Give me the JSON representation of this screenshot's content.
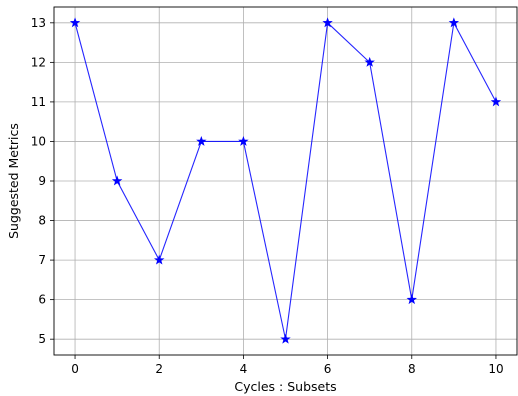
{
  "chart_data": {
    "type": "line",
    "title": "",
    "xlabel": "Cycles : Subsets",
    "ylabel": "Suggested Metrics",
    "x": [
      0,
      1,
      2,
      3,
      4,
      5,
      6,
      7,
      8,
      9,
      10
    ],
    "series": [
      {
        "values": [
          13,
          9,
          7,
          10,
          10,
          5,
          13,
          12,
          6,
          13,
          11
        ],
        "color": "#0000ff",
        "marker": "star"
      }
    ],
    "xticks": [
      0,
      2,
      4,
      6,
      8,
      10
    ],
    "yticks": [
      5,
      6,
      7,
      8,
      9,
      10,
      11,
      12,
      13
    ],
    "xlim": [
      -0.5,
      10.5
    ],
    "ylim": [
      4.6,
      13.4
    ],
    "grid": true,
    "legend": "none"
  }
}
